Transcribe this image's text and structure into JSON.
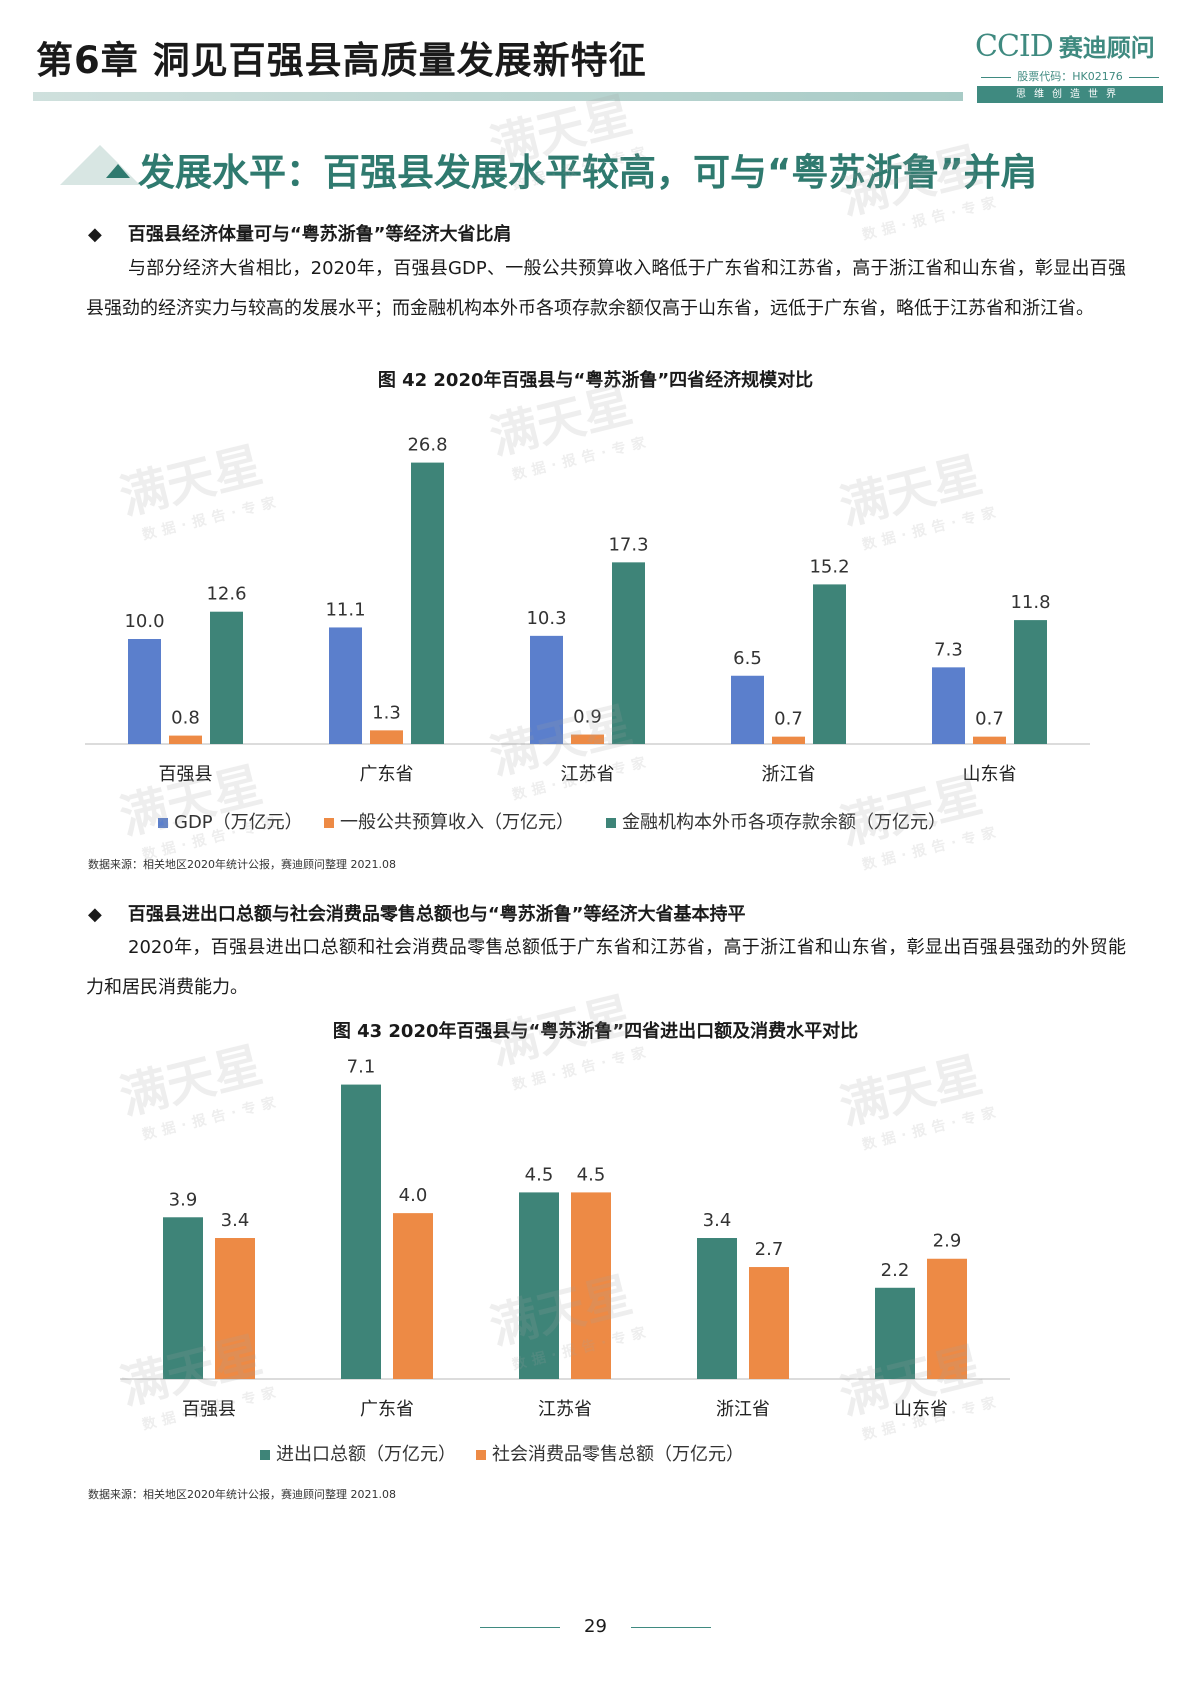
{
  "header": {
    "chapter_title": "第6章 洞见百强县高质量发展新特征",
    "logo_en": "CCID",
    "logo_cn": "赛迪顾问",
    "stock_code": "股票代码：HK02176",
    "slogan": "思维创造世界"
  },
  "section": {
    "title": "发展水平：百强县发展水平较高，可与“粤苏浙鲁”并肩"
  },
  "block1": {
    "heading": "百强县经济体量可与“粤苏浙鲁”等经济大省比肩",
    "paragraph": "与部分经济大省相比，2020年，百强县GDP、一般公共预算收入略低于广东省和江苏省，高于浙江省和山东省，彰显出百强县强劲的经济实力与较高的发展水平；而金融机构本外币各项存款余额仅高于山东省，远低于广东省，略低于江苏省和浙江省。"
  },
  "figure42": {
    "title": "图 42 2020年百强县与“粤苏浙鲁”四省经济规模对比",
    "source": "数据来源：相关地区2020年统计公报，赛迪顾问整理 2021.08"
  },
  "block2": {
    "heading": "百强县进出口总额与社会消费品零售总额也与“粤苏浙鲁”等经济大省基本持平",
    "paragraph": "2020年，百强县进出口总额和社会消费品零售总额低于广东省和江苏省，高于浙江省和山东省，彰显出百强县强劲的外贸能力和居民消费能力。"
  },
  "figure43": {
    "title": "图 43 2020年百强县与“粤苏浙鲁”四省进出口额及消费水平对比",
    "source": "数据来源：相关地区2020年统计公报，赛迪顾问整理 2021.08"
  },
  "watermark": {
    "text": "满天星",
    "sub": "数据·报告·专家"
  },
  "page_number": "29",
  "chart_data": [
    {
      "type": "bar",
      "title": "图 42 2020年百强县与“粤苏浙鲁”四省经济规模对比",
      "categories": [
        "百强县",
        "广东省",
        "江苏省",
        "浙江省",
        "山东省"
      ],
      "series": [
        {
          "name": "GDP（万亿元）",
          "color": "#5b7fcc",
          "values": [
            10.0,
            11.1,
            10.3,
            6.5,
            7.3
          ]
        },
        {
          "name": "一般公共预算收入（万亿元）",
          "color": "#ed8a45",
          "values": [
            0.8,
            1.3,
            0.9,
            0.7,
            0.7
          ]
        },
        {
          "name": "金融机构本外币各项存款余额（万亿元）",
          "color": "#3e8478",
          "values": [
            12.6,
            26.8,
            17.3,
            15.2,
            11.8
          ]
        }
      ],
      "data_labels": true,
      "ylim": [
        0,
        28
      ],
      "grid": false,
      "legend": "bottom"
    },
    {
      "type": "bar",
      "title": "图 43 2020年百强县与“粤苏浙鲁”四省进出口额及消费水平对比",
      "categories": [
        "百强县",
        "广东省",
        "江苏省",
        "浙江省",
        "山东省"
      ],
      "series": [
        {
          "name": "进出口总额（万亿元）",
          "color": "#3e8478",
          "values": [
            3.9,
            7.1,
            4.5,
            3.4,
            2.2
          ]
        },
        {
          "name": "社会消费品零售总额（万亿元）",
          "color": "#ed8a45",
          "values": [
            3.4,
            4.0,
            4.5,
            2.7,
            2.9
          ]
        }
      ],
      "data_labels": true,
      "ylim": [
        0,
        7.5
      ],
      "grid": false,
      "legend": "bottom"
    }
  ]
}
